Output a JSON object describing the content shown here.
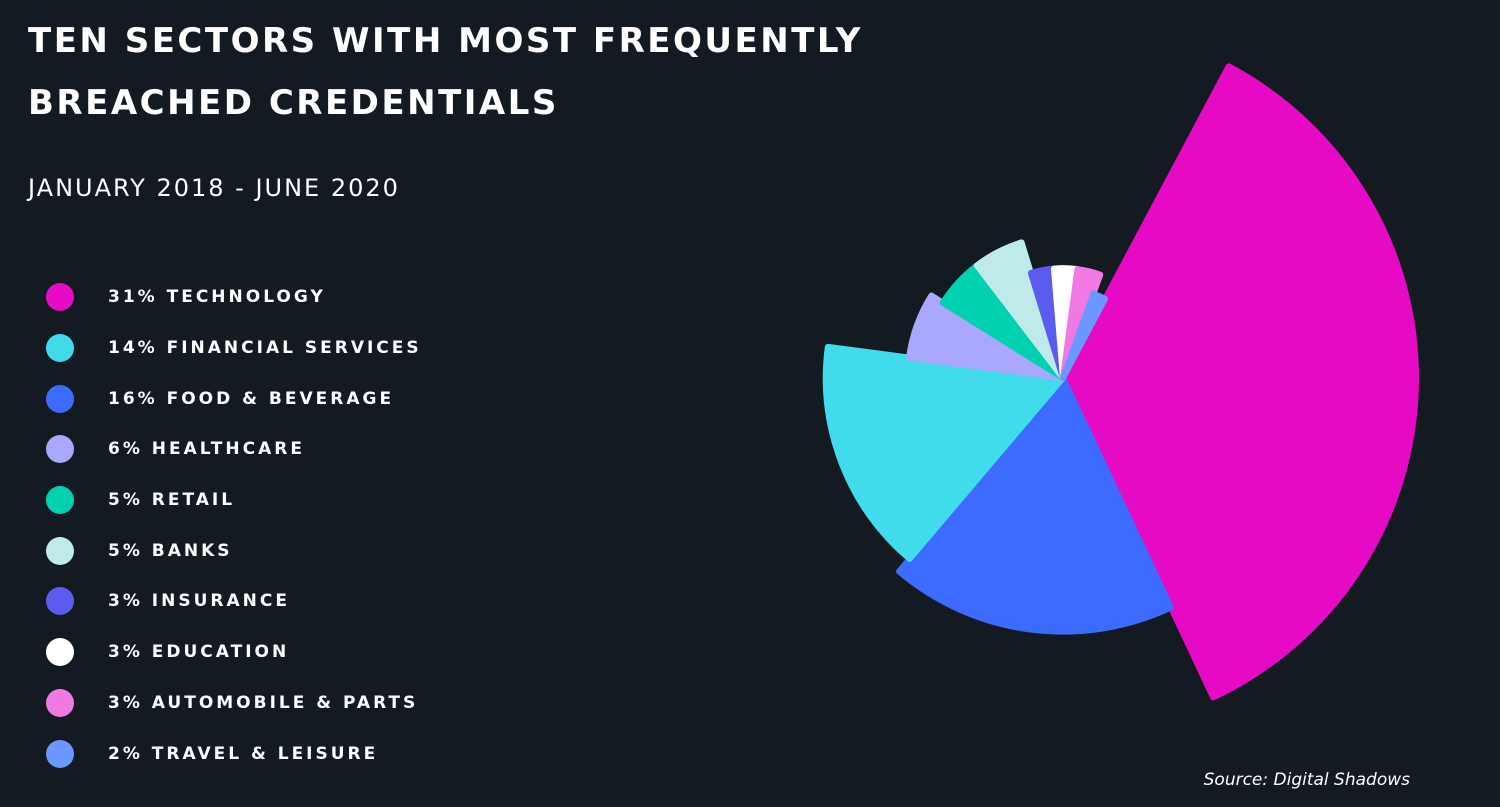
{
  "title_line1": "TEN SECTORS WITH MOST FREQUENTLY",
  "title_line2": "BREACHED CREDENTIALS",
  "subtitle": "JANUARY 2018 - JUNE 2020",
  "source": "Source: Digital Shadows",
  "legend": [
    {
      "label": "31% TECHNOLOGY",
      "color": "#e60ac4"
    },
    {
      "label": "14% FINANCIAL SERVICES",
      "color": "#40dceb"
    },
    {
      "label": "16% FOOD & BEVERAGE",
      "color": "#3d6aff"
    },
    {
      "label": "6% HEALTHCARE",
      "color": "#aaa8fc"
    },
    {
      "label": "5% RETAIL",
      "color": "#00d1b0"
    },
    {
      "label": "5% BANKS",
      "color": "#bfeaea"
    },
    {
      "label": "3% INSURANCE",
      "color": "#5b5bef"
    },
    {
      "label": "3% EDUCATION",
      "color": "#ffffff"
    },
    {
      "label": "3% AUTOMOBILE & PARTS",
      "color": "#f079e4"
    },
    {
      "label": "2% TRAVEL & LEISURE",
      "color": "#6b98ff"
    }
  ],
  "chart_data": {
    "type": "pie",
    "variant": "nightingale",
    "title": "TEN SECTORS WITH MOST FREQUENTLY BREACHED CREDENTIALS",
    "subtitle": "JANUARY 2018 - JUNE 2020",
    "categories": [
      "TECHNOLOGY",
      "FINANCIAL SERVICES",
      "FOOD & BEVERAGE",
      "HEALTHCARE",
      "RETAIL",
      "BANKS",
      "INSURANCE",
      "EDUCATION",
      "AUTOMOBILE & PARTS",
      "TRAVEL & LEISURE"
    ],
    "values": [
      31,
      14,
      16,
      6,
      5,
      5,
      3,
      3,
      3,
      2
    ],
    "colors": [
      "#e60ac4",
      "#40dceb",
      "#3d6aff",
      "#aaa8fc",
      "#00d1b0",
      "#bfeaea",
      "#5b5bef",
      "#ffffff",
      "#f079e4",
      "#6b98ff"
    ],
    "slice_order": [
      "TECHNOLOGY",
      "FOOD & BEVERAGE",
      "FINANCIAL SERVICES",
      "HEALTHCARE",
      "RETAIL",
      "BANKS",
      "INSURANCE",
      "EDUCATION",
      "AUTOMOBILE & PARTS",
      "TRAVEL & LEISURE"
    ],
    "legend": "left"
  }
}
